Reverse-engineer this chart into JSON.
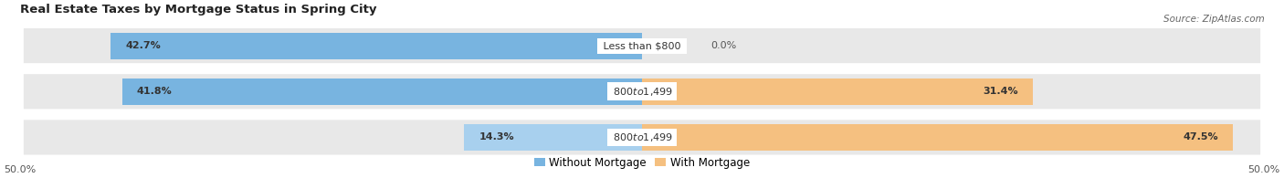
{
  "title": "Real Estate Taxes by Mortgage Status in Spring City",
  "source": "Source: ZipAtlas.com",
  "rows": [
    {
      "label": "Less than $800",
      "without_mortgage": 42.7,
      "with_mortgage": 0.0
    },
    {
      "label": "$800 to $1,499",
      "without_mortgage": 41.8,
      "with_mortgage": 31.4
    },
    {
      "label": "$800 to $1,499",
      "without_mortgage": 14.3,
      "with_mortgage": 47.5
    }
  ],
  "x_max": 50.0,
  "x_min": -50.0,
  "color_without": "#78B4E0",
  "color_without_light": "#A8D0EE",
  "color_with": "#F5C080",
  "color_row_bg": "#E8E8E8",
  "title_fontsize": 9.5,
  "bar_fontsize": 8,
  "label_fontsize": 8,
  "axis_fontsize": 8,
  "legend_fontsize": 8.5,
  "source_fontsize": 7.5
}
